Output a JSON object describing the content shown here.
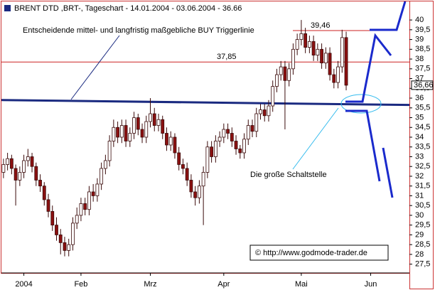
{
  "chart_data": {
    "type": "candlestick",
    "title": "BRENT DTD ,BRT-, Tageschart - 14.01.2004 - 03.06.2004 - 36.66",
    "annotation": "Entscheidende mittel- und langfristig maßgebliche BUY Triggerlinie",
    "callout": "Die große Schaltstelle",
    "source": "© http://www.godmode-trader.de",
    "up_color": "#ffffff",
    "down_color": "#8b1010",
    "ylim": [
      27.05,
      40.95
    ],
    "yticks": [
      {
        "value": 27.5,
        "label": "27,5"
      },
      28,
      {
        "value": 28.5,
        "label": "28,5"
      },
      29,
      {
        "value": 29.5,
        "label": "29,5"
      },
      30,
      {
        "value": 30.5,
        "label": "30,5"
      },
      31,
      {
        "value": 31.5,
        "label": "31,5"
      },
      32,
      {
        "value": 32.5,
        "label": "32,5"
      },
      33,
      {
        "value": 33.5,
        "label": "33,5"
      },
      34,
      {
        "value": 34.5,
        "label": "34,5"
      },
      35,
      {
        "value": 35.5,
        "label": "35,5"
      },
      36,
      {
        "value": 36.5,
        "label": "36,5"
      },
      37,
      {
        "value": 37.5,
        "label": "37,5"
      },
      38,
      {
        "value": 38.5,
        "label": "38,5"
      },
      39,
      {
        "value": 39.5,
        "label": "39,5"
      },
      40
    ],
    "last_price": {
      "value": 36.66,
      "label": "36,66"
    },
    "levels": [
      {
        "value": 37.85,
        "label": "37,85",
        "color": "#cc2222"
      },
      {
        "value": 39.46,
        "label": "39,46",
        "color": "#cc2222"
      }
    ],
    "trigger_line": [
      35.9,
      35.65
    ],
    "categories": [
      null,
      null,
      null,
      null,
      null,
      "2004",
      null,
      null,
      null,
      null,
      null,
      null,
      null,
      null,
      null,
      null,
      null,
      null,
      null,
      "Feb",
      null,
      null,
      null,
      null,
      null,
      null,
      null,
      null,
      null,
      null,
      null,
      null,
      null,
      null,
      null,
      null,
      "Mrz",
      null,
      null,
      null,
      null,
      null,
      null,
      null,
      null,
      null,
      null,
      null,
      null,
      null,
      null,
      null,
      null,
      null,
      "Apr",
      null,
      null,
      null,
      null,
      null,
      null,
      null,
      null,
      null,
      null,
      null,
      null,
      null,
      null,
      null,
      null,
      null,
      null,
      "Mai",
      null,
      null,
      null,
      null,
      null,
      null,
      null,
      null,
      null,
      null,
      null,
      null,
      null,
      null,
      null,
      null,
      "Jun",
      null,
      null,
      null,
      null,
      null,
      null,
      null,
      null,
      null
    ],
    "ohlc": [
      [
        32.2,
        32.9,
        31.9,
        32.6
      ],
      [
        32.6,
        33.2,
        32.3,
        32.9
      ],
      [
        32.9,
        33.1,
        32.1,
        32.4
      ],
      [
        32.4,
        32.6,
        30.5,
        31.8
      ],
      [
        31.8,
        32.5,
        31.5,
        32.2
      ],
      [
        32.2,
        33.1,
        31.9,
        32.8
      ],
      [
        32.8,
        33.4,
        32.5,
        33.0
      ],
      [
        33.0,
        33.2,
        32.2,
        32.5
      ],
      [
        32.5,
        32.7,
        31.5,
        31.8
      ],
      [
        31.8,
        32.1,
        31.2,
        31.5
      ],
      [
        31.5,
        31.7,
        30.5,
        30.8
      ],
      [
        30.8,
        31.1,
        29.9,
        30.2
      ],
      [
        30.2,
        30.5,
        29.2,
        29.5
      ],
      [
        29.5,
        29.9,
        28.7,
        29.0
      ],
      [
        29.0,
        29.3,
        28.0,
        28.6
      ],
      [
        28.6,
        28.9,
        27.9,
        28.2
      ],
      [
        28.2,
        28.8,
        27.9,
        28.5
      ],
      [
        28.5,
        29.9,
        28.2,
        29.6
      ],
      [
        29.6,
        30.4,
        29.3,
        30.0
      ],
      [
        30.0,
        30.9,
        29.7,
        30.6
      ],
      [
        30.6,
        30.9,
        30.0,
        30.3
      ],
      [
        30.3,
        31.5,
        30.0,
        31.2
      ],
      [
        31.2,
        31.6,
        30.7,
        31.0
      ],
      [
        31.0,
        31.9,
        30.7,
        31.6
      ],
      [
        31.6,
        32.7,
        31.3,
        32.4
      ],
      [
        32.4,
        33.1,
        32.1,
        32.8
      ],
      [
        32.8,
        34.1,
        32.5,
        33.8
      ],
      [
        33.8,
        34.9,
        33.5,
        34.5
      ],
      [
        34.5,
        34.8,
        33.7,
        34.0
      ],
      [
        34.0,
        34.9,
        33.7,
        34.6
      ],
      [
        34.6,
        34.9,
        33.5,
        33.8
      ],
      [
        33.8,
        34.5,
        33.5,
        34.2
      ],
      [
        34.2,
        35.3,
        33.9,
        35.0
      ],
      [
        35.0,
        35.2,
        34.1,
        34.4
      ],
      [
        34.4,
        34.7,
        33.7,
        34.0
      ],
      [
        34.0,
        35.1,
        33.7,
        34.8
      ],
      [
        34.8,
        36.0,
        34.5,
        35.2
      ],
      [
        35.2,
        35.5,
        34.3,
        34.6
      ],
      [
        34.6,
        35.2,
        34.3,
        34.9
      ],
      [
        34.9,
        35.1,
        33.9,
        34.2
      ],
      [
        34.2,
        34.5,
        33.3,
        33.6
      ],
      [
        33.6,
        34.3,
        33.3,
        34.0
      ],
      [
        34.0,
        34.2,
        32.9,
        33.2
      ],
      [
        33.2,
        33.5,
        32.3,
        32.6
      ],
      [
        32.6,
        32.9,
        32.1,
        32.4
      ],
      [
        32.4,
        32.7,
        31.5,
        31.8
      ],
      [
        31.8,
        32.1,
        30.9,
        31.2
      ],
      [
        31.2,
        31.5,
        30.5,
        30.9
      ],
      [
        30.9,
        31.8,
        30.6,
        31.5
      ],
      [
        31.5,
        32.5,
        29.5,
        32.2
      ],
      [
        32.2,
        33.8,
        31.9,
        33.5
      ],
      [
        33.5,
        33.8,
        32.7,
        33.0
      ],
      [
        33.0,
        34.1,
        32.7,
        33.8
      ],
      [
        33.8,
        34.3,
        33.5,
        34.0
      ],
      [
        34.0,
        34.7,
        33.7,
        34.4
      ],
      [
        34.4,
        34.7,
        33.9,
        34.2
      ],
      [
        34.2,
        34.5,
        33.5,
        33.8
      ],
      [
        33.8,
        34.1,
        33.1,
        33.4
      ],
      [
        33.4,
        33.6,
        32.9,
        33.2
      ],
      [
        33.2,
        34.2,
        32.9,
        33.9
      ],
      [
        33.9,
        34.9,
        33.6,
        34.6
      ],
      [
        34.6,
        34.9,
        34.0,
        34.3
      ],
      [
        34.3,
        35.5,
        34.0,
        35.2
      ],
      [
        35.2,
        35.7,
        34.9,
        35.4
      ],
      [
        35.4,
        35.7,
        34.8,
        35.1
      ],
      [
        35.1,
        35.9,
        34.8,
        35.6
      ],
      [
        35.6,
        36.9,
        35.3,
        36.6
      ],
      [
        36.6,
        37.5,
        36.3,
        37.2
      ],
      [
        37.2,
        37.9,
        36.9,
        37.6
      ],
      [
        37.6,
        37.9,
        34.4,
        36.9
      ],
      [
        36.9,
        37.8,
        36.6,
        37.5
      ],
      [
        37.5,
        38.8,
        37.2,
        38.5
      ],
      [
        38.5,
        39.3,
        38.2,
        39.0
      ],
      [
        39.0,
        40.0,
        38.7,
        39.3
      ],
      [
        39.3,
        39.6,
        38.3,
        38.6
      ],
      [
        38.6,
        39.2,
        38.3,
        38.9
      ],
      [
        38.9,
        39.2,
        37.9,
        38.2
      ],
      [
        38.2,
        38.8,
        37.9,
        38.5
      ],
      [
        38.5,
        38.8,
        37.5,
        37.8
      ],
      [
        37.8,
        38.6,
        37.5,
        38.3
      ],
      [
        38.3,
        38.6,
        36.9,
        37.2
      ],
      [
        37.2,
        37.5,
        36.5,
        36.8
      ],
      [
        36.8,
        37.9,
        36.5,
        37.6
      ],
      [
        37.6,
        39.5,
        37.3,
        39.1
      ],
      [
        39.1,
        39.4,
        36.4,
        36.66
      ],
      null,
      null,
      null,
      null,
      null,
      null,
      null,
      null,
      null,
      null,
      null,
      null,
      null,
      null,
      null
    ]
  }
}
